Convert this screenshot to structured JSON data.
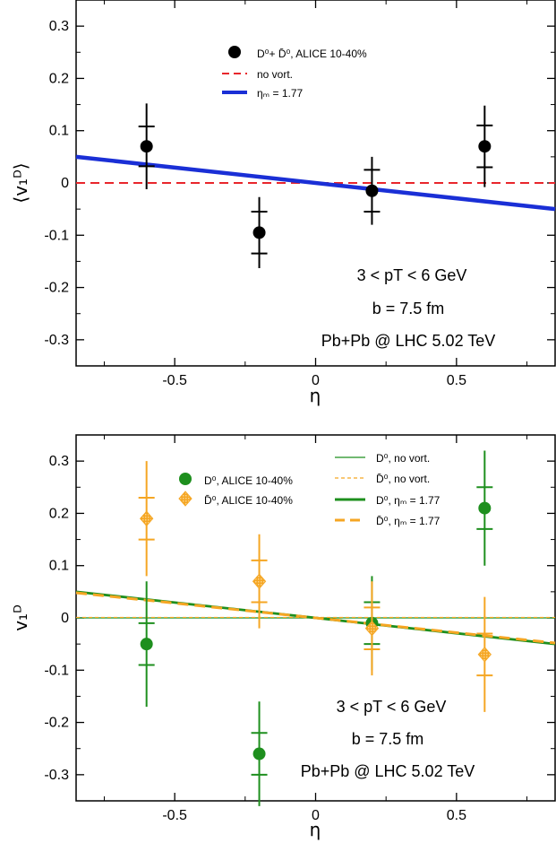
{
  "chart_data": [
    {
      "type": "scatter",
      "xlabel": "η",
      "ylabel": "⟨v₁ᴰ⟩",
      "xlim": [
        -0.85,
        0.85
      ],
      "ylim": [
        -0.35,
        0.35
      ],
      "xticks": [
        "-0.5",
        "0",
        "0.5"
      ],
      "yticks": [
        "0.3",
        "0.2",
        "0.1",
        "0",
        "-0.1",
        "-0.2",
        "-0.3"
      ],
      "legend": {
        "alice": "D⁰+ D̄⁰, ALICE 10-40%",
        "novort": "no vort.",
        "eta": "ηₘ = 1.77"
      },
      "annotations": [
        "3 < pT < 6 GeV",
        "b = 7.5 fm",
        "Pb+Pb @ LHC 5.02 TeV"
      ],
      "series": [
        {
          "name": "D⁰+ D̄⁰, ALICE 10-40%",
          "kind": "points",
          "color": "#000000",
          "marker": "circle",
          "x": [
            -0.6,
            -0.2,
            0.2,
            0.6
          ],
          "y": [
            0.07,
            -0.095,
            -0.015,
            0.07
          ],
          "stat_err": [
            0.038,
            0.04,
            0.04,
            0.04
          ],
          "sys_err": [
            0.082,
            0.068,
            0.065,
            0.078
          ]
        },
        {
          "name": "no vort.",
          "kind": "line",
          "color": "#e8262c",
          "dash": "dashed",
          "x": [
            -0.85,
            0.85
          ],
          "y": [
            0.0,
            0.0
          ]
        },
        {
          "name": "ηₘ = 1.77",
          "kind": "line",
          "color": "#1a2fd6",
          "dash": "solid",
          "x": [
            -0.85,
            0.85
          ],
          "y": [
            0.05,
            -0.05
          ]
        }
      ]
    },
    {
      "type": "scatter",
      "xlabel": "η",
      "ylabel": "v₁ᴰ",
      "xlim": [
        -0.85,
        0.85
      ],
      "ylim": [
        -0.35,
        0.35
      ],
      "xticks": [
        "-0.5",
        "0",
        "0.5"
      ],
      "yticks": [
        "0.3",
        "0.2",
        "0.1",
        "0",
        "-0.1",
        "-0.2",
        "-0.3"
      ],
      "legend": {
        "d0": "D⁰, ALICE 10-40%",
        "d0bar": "D̄⁰, ALICE 10-40%",
        "d0novort": "D⁰, no vort.",
        "d0barnovort": "D̄⁰, no vort.",
        "d0eta": "D⁰, ηₘ = 1.77",
        "d0bareta": "D̄⁰, ηₘ = 1.77"
      },
      "annotations": [
        "3 < pT < 6 GeV",
        "b = 7.5 fm",
        "Pb+Pb @ LHC 5.02 TeV"
      ],
      "series": [
        {
          "name": "D⁰, ALICE 10-40%",
          "kind": "points",
          "color": "#1e8f1e",
          "marker": "circle",
          "x": [
            -0.6,
            -0.2,
            0.2,
            0.6
          ],
          "y": [
            -0.05,
            -0.26,
            -0.01,
            0.21
          ],
          "stat_err": [
            0.04,
            0.04,
            0.04,
            0.04
          ],
          "sys_err": [
            0.12,
            0.1,
            0.09,
            0.11
          ]
        },
        {
          "name": "D̄⁰, ALICE 10-40%",
          "kind": "points",
          "color": "#f5a623",
          "marker": "diamond",
          "x": [
            -0.6,
            -0.2,
            0.2,
            0.6
          ],
          "y": [
            0.19,
            0.07,
            -0.02,
            -0.07
          ],
          "stat_err": [
            0.04,
            0.04,
            0.04,
            0.04
          ],
          "sys_err": [
            0.11,
            0.09,
            0.09,
            0.11
          ]
        },
        {
          "name": "D⁰, no vort.",
          "kind": "line",
          "color": "#1e8f1e",
          "dash": "solid-thin",
          "x": [
            -0.85,
            0.85
          ],
          "y": [
            0.0,
            0.0
          ]
        },
        {
          "name": "D̄⁰, no vort.",
          "kind": "line",
          "color": "#f5a623",
          "dash": "dashed-thin",
          "x": [
            -0.85,
            0.85
          ],
          "y": [
            0.001,
            0.001
          ]
        },
        {
          "name": "D⁰, ηₘ = 1.77",
          "kind": "line",
          "color": "#1e8f1e",
          "dash": "solid-thick",
          "x": [
            -0.85,
            0.85
          ],
          "y": [
            0.05,
            -0.05
          ]
        },
        {
          "name": "D̄⁰, ηₘ = 1.77",
          "kind": "line",
          "color": "#f5a623",
          "dash": "dashed-thick",
          "x": [
            -0.85,
            0.85
          ],
          "y": [
            0.048,
            -0.048
          ]
        }
      ]
    }
  ]
}
